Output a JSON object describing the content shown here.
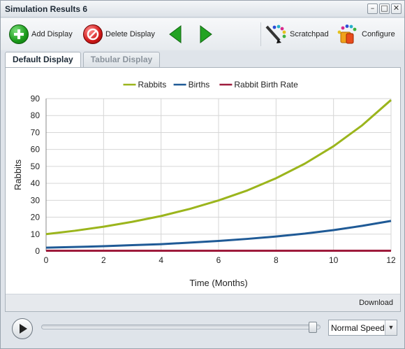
{
  "window": {
    "title": "Simulation Results 6"
  },
  "toolbar": {
    "add_label": "Add Display",
    "delete_label": "Delete Display",
    "scratchpad_label": "Scratchpad",
    "configure_label": "Configure"
  },
  "tabs": [
    {
      "label": "Default Display",
      "active": true
    },
    {
      "label": "Tabular Display",
      "active": false
    }
  ],
  "footer": {
    "download_label": "Download"
  },
  "playback": {
    "speed": "Normal Speed",
    "position": 1.0
  },
  "chart_data": {
    "type": "line",
    "xlabel": "Time (Months)",
    "ylabel": "Rabbits",
    "xlim": [
      0,
      12
    ],
    "ylim": [
      0,
      90
    ],
    "xticks": [
      0,
      2,
      4,
      6,
      8,
      10,
      12
    ],
    "yticks": [
      0,
      10,
      20,
      30,
      40,
      50,
      60,
      70,
      80,
      90
    ],
    "grid": true,
    "legend_position": "top",
    "x": [
      0,
      1,
      2,
      3,
      4,
      5,
      6,
      7,
      8,
      9,
      10,
      11,
      12
    ],
    "series": [
      {
        "name": "Rabbits",
        "color": "#9bb51c",
        "values": [
          10,
          12,
          14.4,
          17.3,
          20.7,
          24.9,
          29.9,
          35.8,
          43,
          51.6,
          61.9,
          74.3,
          89.2
        ]
      },
      {
        "name": "Births",
        "color": "#1f5a96",
        "values": [
          2,
          2.4,
          2.9,
          3.5,
          4.1,
          5,
          6,
          7.2,
          8.6,
          10.3,
          12.4,
          14.9,
          17.8
        ]
      },
      {
        "name": "Rabbit Birth Rate",
        "color": "#9e1b3c",
        "values": [
          0.2,
          0.2,
          0.2,
          0.2,
          0.2,
          0.2,
          0.2,
          0.2,
          0.2,
          0.2,
          0.2,
          0.2,
          0.2
        ]
      }
    ]
  }
}
